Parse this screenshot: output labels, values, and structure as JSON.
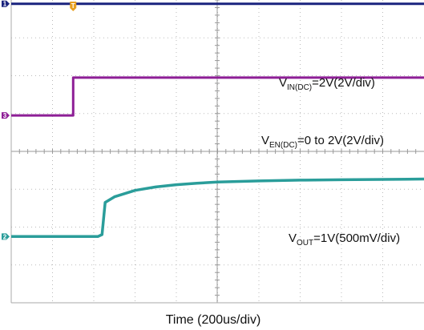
{
  "chart_data": {
    "type": "line",
    "title": "",
    "xlabel": "Time (200us/div)",
    "ylabel": "",
    "x_unit": "us",
    "divisions": {
      "x": 10,
      "y": 8
    },
    "time_per_div_us": 200,
    "grid": true,
    "trigger_marker": {
      "label": "T",
      "time_us": 300,
      "color": "#e8a020"
    },
    "series": [
      {
        "channel": "1",
        "label_main": "V",
        "label_sub": "IN(DC)",
        "label_rest": "=2V(2V/div)",
        "color": "#1a237e",
        "x": [
          0,
          2000
        ],
        "y": [
          3.9,
          3.9
        ]
      },
      {
        "channel": "3",
        "label_main": "V",
        "label_sub": "EN(DC)",
        "label_rest": "=0 to 2V(2V/div)",
        "color": "#8e1f96",
        "x": [
          0,
          300,
          300,
          2000
        ],
        "y": [
          0.95,
          0.95,
          1.95,
          1.95
        ]
      },
      {
        "channel": "2",
        "label_main": "V",
        "label_sub": "OUT",
        "label_rest": "=1V(500mV/div)",
        "color": "#2a9d9a",
        "x": [
          0,
          420,
          440,
          455,
          500,
          600,
          700,
          800,
          900,
          1000,
          1200,
          1400,
          1600,
          1800,
          2000
        ],
        "y": [
          -2.25,
          -2.25,
          -2.2,
          -1.35,
          -1.2,
          -1.03,
          -0.94,
          -0.88,
          -0.84,
          -0.81,
          -0.78,
          -0.76,
          -0.75,
          -0.74,
          -0.73
        ]
      }
    ]
  }
}
